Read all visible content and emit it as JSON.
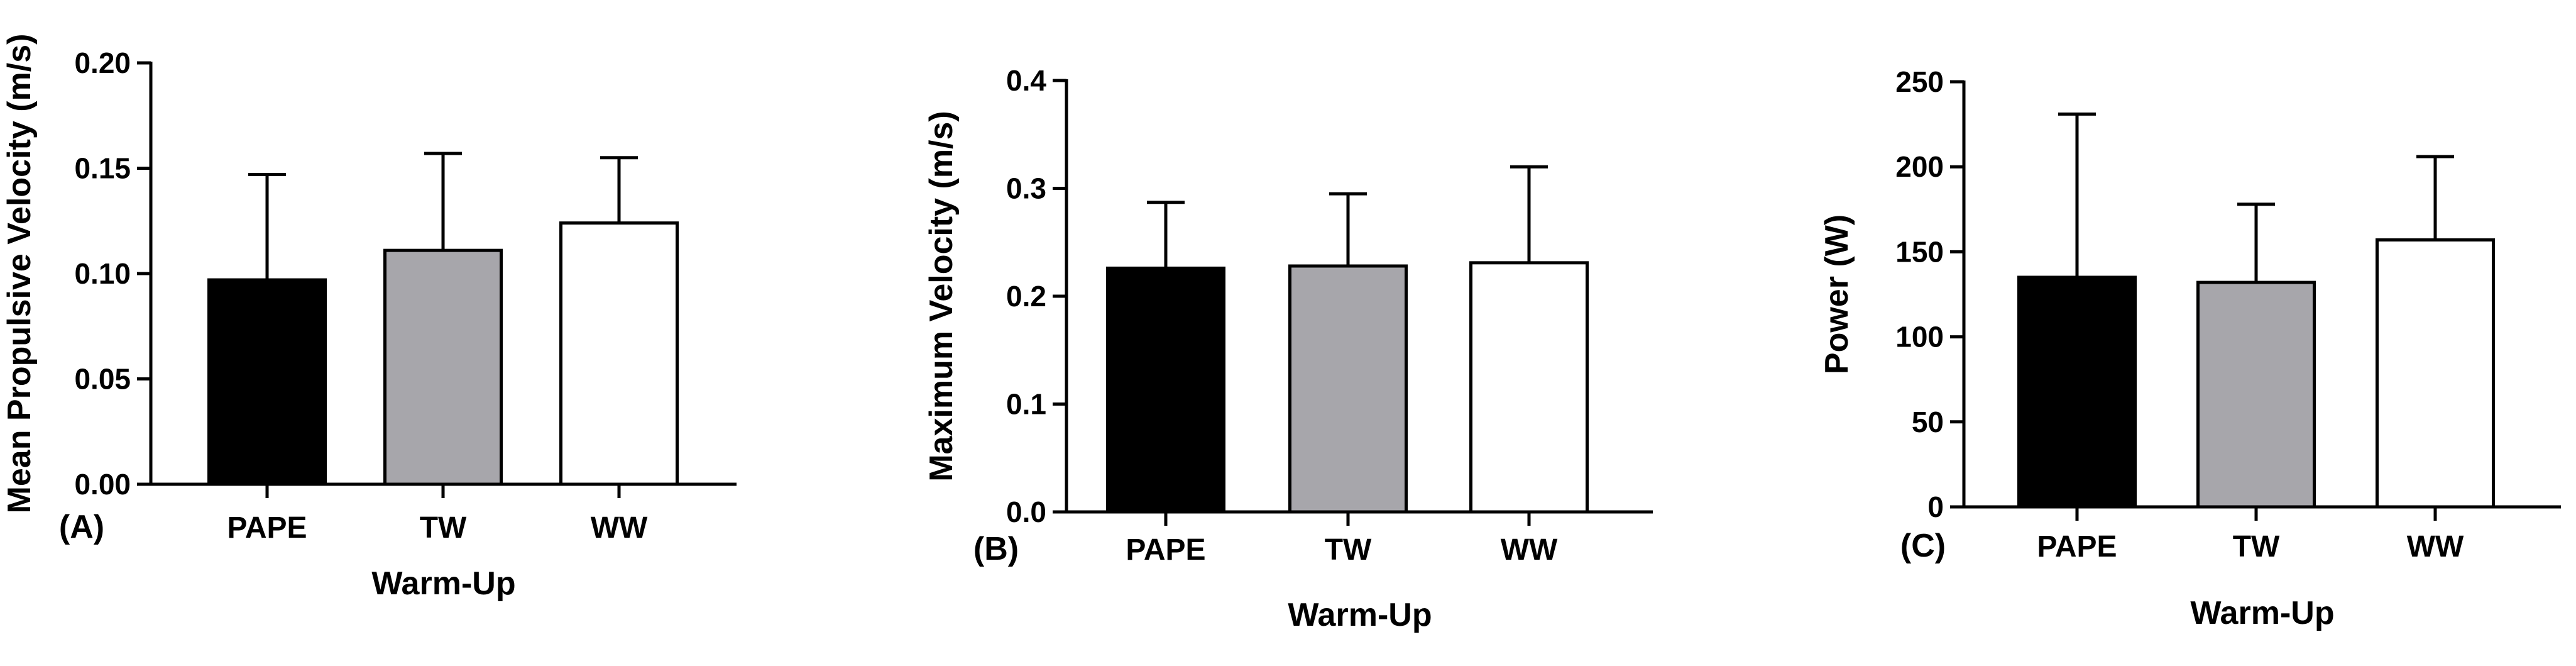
{
  "chart_data": [
    {
      "type": "bar",
      "panel_label": "(A)",
      "categories": [
        "PAPE",
        "TW",
        "WW"
      ],
      "values": [
        0.097,
        0.111,
        0.124
      ],
      "errors": [
        0.05,
        0.046,
        0.031
      ],
      "bar_colors": [
        "#000000",
        "#a7a6ab",
        "#ffffff"
      ],
      "ylabel": "Mean Propulsive Velocity (m/s)",
      "xlabel": "Warm-Up",
      "ylim": [
        0,
        0.2
      ],
      "yticks": [
        "0.00",
        "0.05",
        "0.10",
        "0.15",
        "0.20"
      ]
    },
    {
      "type": "bar",
      "panel_label": "(B)",
      "categories": [
        "PAPE",
        "TW",
        "WW"
      ],
      "values": [
        0.226,
        0.228,
        0.231
      ],
      "errors": [
        0.061,
        0.067,
        0.089
      ],
      "bar_colors": [
        "#000000",
        "#a7a6ab",
        "#ffffff"
      ],
      "ylabel": "Maximum Velocity (m/s)",
      "xlabel": "Warm-Up",
      "ylim": [
        0,
        0.4
      ],
      "yticks": [
        "0.0",
        "0.1",
        "0.2",
        "0.3",
        "0.4"
      ]
    },
    {
      "type": "bar",
      "panel_label": "(C)",
      "categories": [
        "PAPE",
        "TW",
        "WW"
      ],
      "values": [
        135,
        132,
        157
      ],
      "errors": [
        96,
        46,
        49
      ],
      "bar_colors": [
        "#000000",
        "#a7a6ab",
        "#ffffff"
      ],
      "ylabel": "Power (W)",
      "xlabel": "Warm-Up",
      "ylim": [
        0,
        250
      ],
      "yticks": [
        "0",
        "50",
        "100",
        "150",
        "200",
        "250"
      ]
    }
  ]
}
